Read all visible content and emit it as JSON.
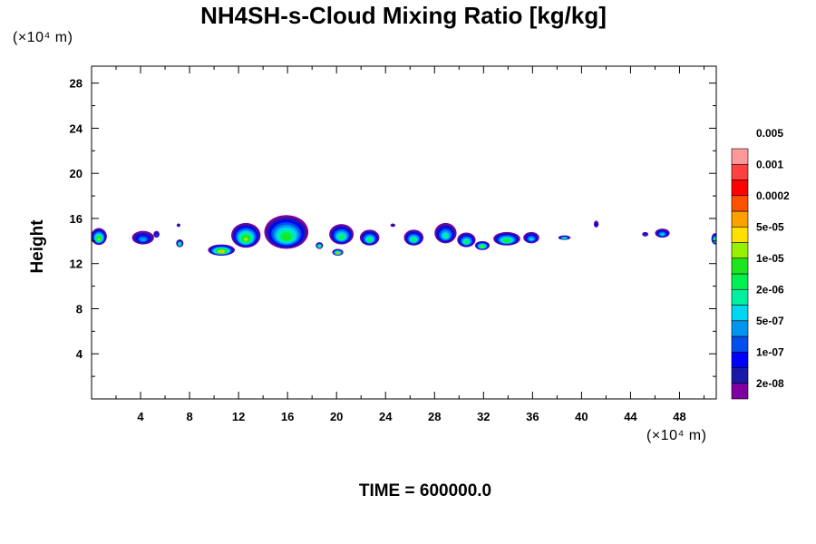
{
  "chart_data": {
    "type": "heatmap",
    "title": "NH4SH-s-Cloud Mixing Ratio [kg/kg]",
    "ylabel": "Height",
    "xlabel": "",
    "x_unit": "(×10⁴ m)",
    "y_unit": "(×10⁴ m)",
    "time_label": "TIME = 600000.0",
    "xlim": [
      0,
      51
    ],
    "ylim": [
      0,
      29.5
    ],
    "x_ticks": [
      4,
      8,
      12,
      16,
      20,
      24,
      28,
      32,
      36,
      40,
      44,
      48
    ],
    "x_tick_labels": [
      "4",
      "8",
      "12",
      "16",
      "20",
      "24",
      "28",
      "32",
      "36",
      "40",
      "44",
      "48"
    ],
    "y_ticks": [
      4,
      8,
      12,
      16,
      20,
      24,
      28
    ],
    "y_tick_labels": [
      "4",
      "8",
      "12",
      "16",
      "20",
      "24",
      "28"
    ],
    "colorbar": {
      "scale": "log",
      "colors": [
        "#7f00a0",
        "#1a1aa6",
        "#0000ff",
        "#0050f0",
        "#0096f0",
        "#00d7f0",
        "#00f0a0",
        "#00f050",
        "#1ee61e",
        "#96f000",
        "#ffe000",
        "#ffa000",
        "#ff5000",
        "#ff0000",
        "#ff4040",
        "#ff9999"
      ],
      "labels": [
        "2e-08",
        "1e-07",
        "5e-07",
        "2e-06",
        "1e-05",
        "5e-05",
        "0.0002",
        "0.001",
        "0.005"
      ]
    },
    "cloud_cells": [
      {
        "x": 0.6,
        "y": 14.4,
        "w": 1.3,
        "h": 1.5,
        "level": 9
      },
      {
        "x": 4.2,
        "y": 14.3,
        "w": 1.8,
        "h": 1.2,
        "level": 4
      },
      {
        "x": 5.3,
        "y": 14.6,
        "w": 0.5,
        "h": 0.6,
        "level": 3
      },
      {
        "x": 7.1,
        "y": 15.4,
        "w": 0.3,
        "h": 0.3,
        "level": 2
      },
      {
        "x": 7.2,
        "y": 13.8,
        "w": 0.6,
        "h": 0.7,
        "level": 8
      },
      {
        "x": 10.6,
        "y": 13.2,
        "w": 2.2,
        "h": 1.0,
        "level": 11
      },
      {
        "x": 12.6,
        "y": 14.5,
        "w": 2.4,
        "h": 2.2,
        "level": 9
      },
      {
        "x": 15.9,
        "y": 14.8,
        "w": 3.6,
        "h": 3.0,
        "level": 8
      },
      {
        "x": 18.6,
        "y": 13.6,
        "w": 0.6,
        "h": 0.6,
        "level": 9
      },
      {
        "x": 20.1,
        "y": 13.0,
        "w": 0.9,
        "h": 0.6,
        "level": 11
      },
      {
        "x": 20.4,
        "y": 14.6,
        "w": 2.0,
        "h": 1.8,
        "level": 7
      },
      {
        "x": 22.7,
        "y": 14.3,
        "w": 1.6,
        "h": 1.4,
        "level": 7
      },
      {
        "x": 24.6,
        "y": 15.4,
        "w": 0.4,
        "h": 0.3,
        "level": 2
      },
      {
        "x": 26.3,
        "y": 14.3,
        "w": 1.6,
        "h": 1.4,
        "level": 7
      },
      {
        "x": 28.9,
        "y": 14.7,
        "w": 1.8,
        "h": 1.8,
        "level": 6
      },
      {
        "x": 30.6,
        "y": 14.1,
        "w": 1.5,
        "h": 1.3,
        "level": 7
      },
      {
        "x": 31.9,
        "y": 13.6,
        "w": 1.2,
        "h": 0.8,
        "level": 9
      },
      {
        "x": 33.9,
        "y": 14.2,
        "w": 2.2,
        "h": 1.2,
        "level": 8
      },
      {
        "x": 35.9,
        "y": 14.3,
        "w": 1.3,
        "h": 1.0,
        "level": 5
      },
      {
        "x": 38.6,
        "y": 14.3,
        "w": 1.0,
        "h": 0.4,
        "level": 7
      },
      {
        "x": 41.2,
        "y": 15.5,
        "w": 0.4,
        "h": 0.6,
        "level": 2
      },
      {
        "x": 45.2,
        "y": 14.6,
        "w": 0.5,
        "h": 0.4,
        "level": 3
      },
      {
        "x": 46.6,
        "y": 14.7,
        "w": 1.2,
        "h": 0.8,
        "level": 5
      },
      {
        "x": 50.9,
        "y": 14.2,
        "w": 0.6,
        "h": 1.0,
        "level": 8
      }
    ]
  }
}
